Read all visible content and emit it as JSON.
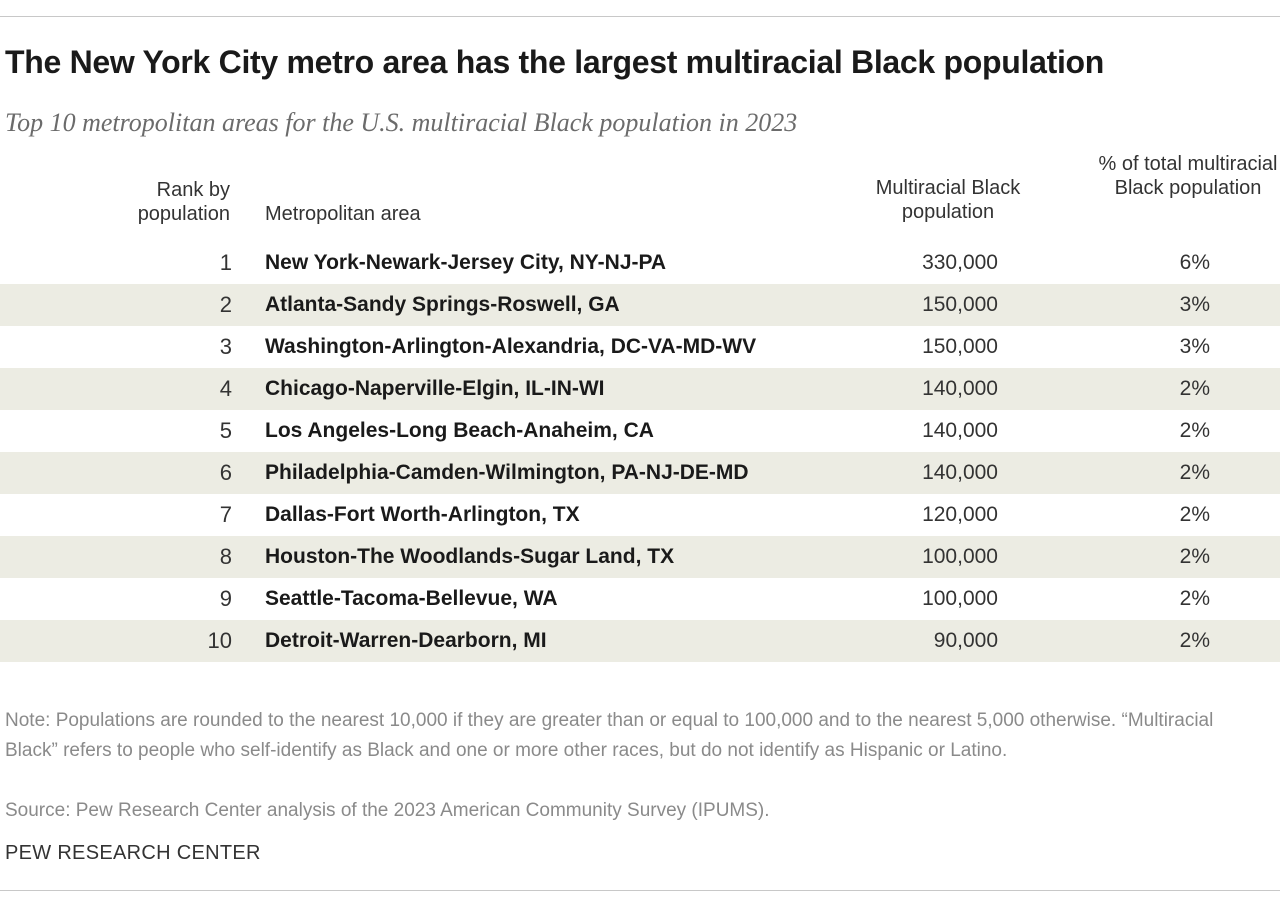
{
  "title": "The New York City metro area has the largest multiracial Black population",
  "subtitle": "Top 10 metropolitan areas for the U.S. multiracial Black population in 2023",
  "headers": {
    "rank": "Rank by population",
    "metro": "Metropolitan area",
    "population": "Multiracial Black population",
    "percent": "% of total multiracial Black population"
  },
  "chart_data": {
    "type": "table",
    "title": "The New York City metro area has the largest multiracial Black population",
    "subtitle": "Top 10 metropolitan areas for the U.S. multiracial Black population in 2023",
    "columns": [
      "Rank by population",
      "Metropolitan area",
      "Multiracial Black population",
      "% of total multiracial Black population"
    ],
    "rows": [
      {
        "rank": "1",
        "metro": "New York-Newark-Jersey City, NY-NJ-PA",
        "population": "330,000",
        "percent": "6%"
      },
      {
        "rank": "2",
        "metro": "Atlanta-Sandy Springs-Roswell, GA",
        "population": "150,000",
        "percent": "3%"
      },
      {
        "rank": "3",
        "metro": "Washington-Arlington-Alexandria, DC-VA-MD-WV",
        "population": "150,000",
        "percent": "3%"
      },
      {
        "rank": "4",
        "metro": "Chicago-Naperville-Elgin, IL-IN-WI",
        "population": "140,000",
        "percent": "2%"
      },
      {
        "rank": "5",
        "metro": "Los Angeles-Long Beach-Anaheim, CA",
        "population": "140,000",
        "percent": "2%"
      },
      {
        "rank": "6",
        "metro": "Philadelphia-Camden-Wilmington, PA-NJ-DE-MD",
        "population": "140,000",
        "percent": "2%"
      },
      {
        "rank": "7",
        "metro": "Dallas-Fort Worth-Arlington, TX",
        "population": "120,000",
        "percent": "2%"
      },
      {
        "rank": "8",
        "metro": "Houston-The Woodlands-Sugar Land, TX",
        "population": "100,000",
        "percent": "2%"
      },
      {
        "rank": "9",
        "metro": "Seattle-Tacoma-Bellevue, WA",
        "population": "100,000",
        "percent": "2%"
      },
      {
        "rank": "10",
        "metro": "Detroit-Warren-Dearborn, MI",
        "population": "90,000",
        "percent": "2%"
      }
    ]
  },
  "note": "Note: Populations are rounded to the nearest 10,000 if they are greater than or equal to 100,000 and to the nearest 5,000 otherwise. “Multiracial Black” refers to people who self-identify as Black and one or more other races, but do not identify as Hispanic or Latino.",
  "source": "Source: Pew Research Center analysis of the 2023 American Community Survey (IPUMS).",
  "brand": "PEW RESEARCH CENTER",
  "colors": {
    "stripe": "#ecece3",
    "title": "#1a1a1a",
    "subtitle": "#6b6b6b",
    "note": "#8a8a8a"
  }
}
